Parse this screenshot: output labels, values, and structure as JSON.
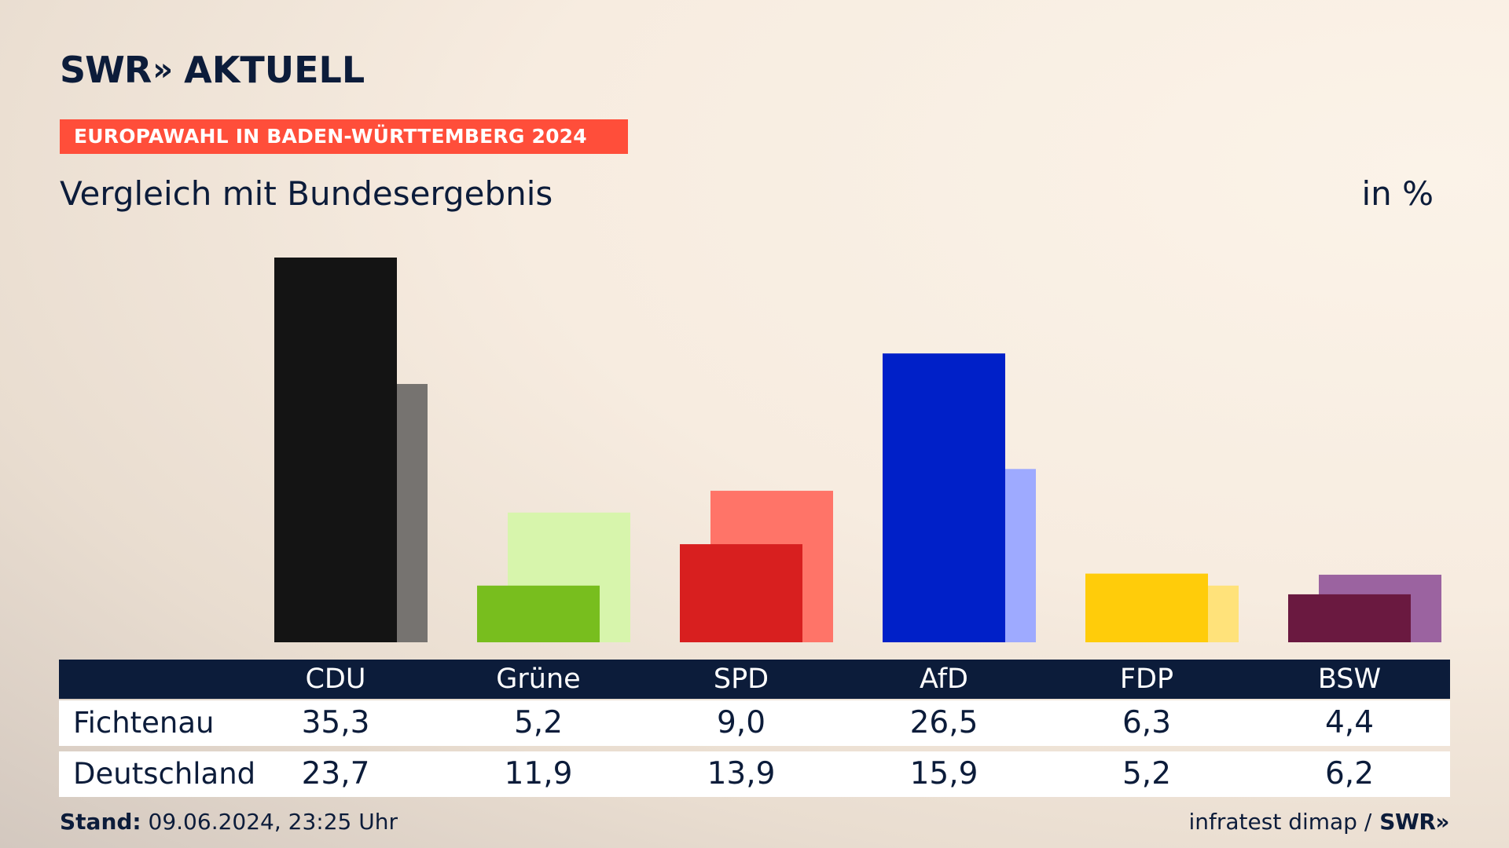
{
  "header": {
    "logo": "SWR",
    "logo_chevrons": "»",
    "logo_product": "AKTUELL",
    "banner": "EUROPAWAHL IN BADEN-WÜRTTEMBERG 2024",
    "subtitle": "Vergleich mit Bundesergebnis",
    "unit": "in %"
  },
  "chart_data": {
    "type": "bar",
    "title": "Vergleich mit Bundesergebnis",
    "ylabel": "in %",
    "ylim": [
      0,
      35.3
    ],
    "categories": [
      "CDU",
      "Grüne",
      "SPD",
      "AfD",
      "FDP",
      "BSW"
    ],
    "series": [
      {
        "name": "Fichtenau",
        "values": [
          35.3,
          5.2,
          9.0,
          26.5,
          6.3,
          4.4
        ],
        "display": [
          "35,3",
          "5,2",
          "9,0",
          "26,5",
          "6,3",
          "4,4"
        ]
      },
      {
        "name": "Deutschland",
        "values": [
          23.7,
          11.9,
          13.9,
          15.9,
          5.2,
          6.2
        ],
        "display": [
          "23,7",
          "11,9",
          "13,9",
          "15,9",
          "5,2",
          "6,2"
        ]
      }
    ],
    "colors_primary": [
      "#141414",
      "#78be1e",
      "#d81f1f",
      "#0020c8",
      "#ffcc0a",
      "#6a1940"
    ],
    "colors_secondary": [
      "#767370",
      "#d7f5ac",
      "#ff7468",
      "#9eaaff",
      "#ffe27a",
      "#9b63a0"
    ],
    "grid": false,
    "legend": "table below chart"
  },
  "footer": {
    "stand_label": "Stand:",
    "stand_value": "09.06.2024, 23:25 Uhr",
    "source": "infratest dimap /",
    "source_logo": "SWR»"
  }
}
